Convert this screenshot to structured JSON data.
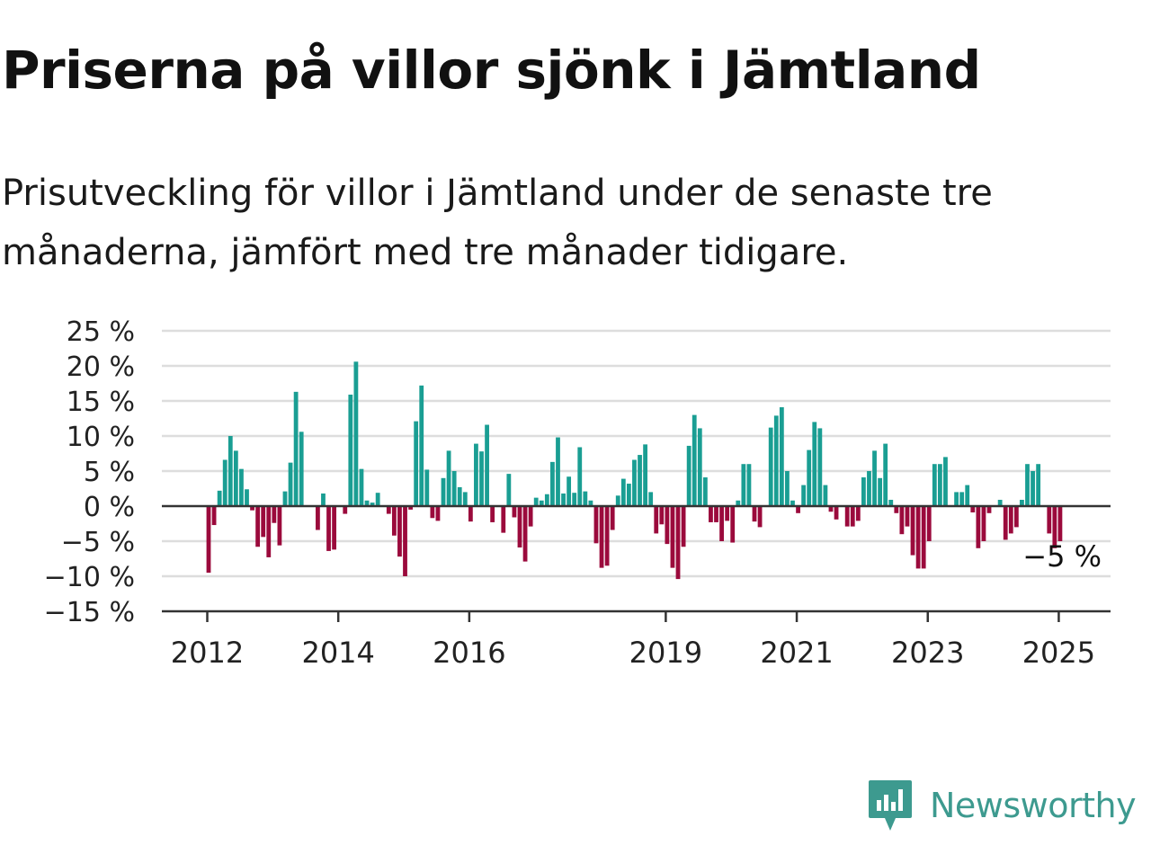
{
  "title": "Priserna på villor sjönk i Jämtland",
  "subtitle": "Prisutveckling för villor i Jämtland under de senaste tre månaderna, jämfört med tre månader tidigare.",
  "brand": {
    "name": "Newsworthy",
    "color": "#3d9a8f"
  },
  "colors": {
    "positive": "#1a9e93",
    "negative": "#9b0a3c",
    "grid": "#dddddd",
    "axis": "#333333"
  },
  "chart_data": {
    "type": "bar",
    "x_start": "2012-01",
    "y_ticks": [
      25,
      20,
      15,
      10,
      5,
      0,
      -5,
      -10,
      -15
    ],
    "y_tick_labels": [
      "25 %",
      "20 %",
      "15 %",
      "10 %",
      "5 %",
      "0 %",
      "−5 %",
      "−10 %",
      "−15 %"
    ],
    "ylim": [
      -15,
      25
    ],
    "x_ticks": [
      2012,
      2014,
      2016,
      2019,
      2021,
      2023,
      2025
    ],
    "x_tick_labels": [
      "2012",
      "2014",
      "2016",
      "2019",
      "2021",
      "2023",
      "2025"
    ],
    "last_value_label": "−5 %",
    "grid": true,
    "series": [
      {
        "values": [
          -9.5,
          -2.7,
          2.2,
          6.6,
          10,
          7.9,
          5.3,
          2.4,
          -0.6,
          -5.8,
          -4.4,
          -7.3,
          -2.4,
          -5.6,
          2.1,
          6.2,
          16.3,
          10.6,
          0,
          0,
          -3.4,
          1.8,
          -6.4,
          -6.2,
          0,
          -1.1,
          15.9,
          20.6,
          5.3,
          0.8,
          0.5,
          1.9,
          0,
          -1.1,
          -4.2,
          -7.2,
          -10,
          -0.5,
          12.1,
          17.2,
          5.2,
          -1.7,
          -2.1,
          4,
          7.9,
          5.0,
          2.7,
          2.0,
          -2.2,
          8.9,
          7.8,
          11.6,
          -2.3,
          0,
          -3.8,
          4.6,
          -1.6,
          -5.9,
          -7.9,
          -2.9,
          1.2,
          0.8,
          1.7,
          6.3,
          9.8,
          1.8,
          4.2,
          1.9,
          8.4,
          2.1,
          0.8,
          -5.3,
          -8.8,
          -8.5,
          -3.4,
          1.5,
          3.9,
          3.2,
          6.6,
          7.3,
          8.8,
          2.0,
          -3.9,
          -2.6,
          -5.4,
          -8.8,
          -10.4,
          -5.8,
          8.6,
          13.0,
          11.1,
          4.1,
          -2.3,
          -2.3,
          -5.0,
          -2.1,
          -5.2,
          0.8,
          6.0,
          6.0,
          -2.2,
          -3.0,
          0,
          11.2,
          12.9,
          14.1,
          5.0,
          0.8,
          -1.0,
          3.0,
          8.0,
          12.0,
          11.1,
          3.0,
          -0.8,
          -1.9,
          0,
          -2.9,
          -2.9,
          -2.1,
          4.1,
          5.0,
          7.9,
          4.0,
          8.9,
          0.9,
          -1.0,
          -4.0,
          -2.9,
          -7.0,
          -8.9,
          -8.9,
          -5.0,
          6.0,
          6.0,
          7.0,
          0,
          2.0,
          2.0,
          3.0,
          -0.9,
          -6.0,
          -5.0,
          -1.0,
          0,
          0.9,
          -4.8,
          -3.9,
          -3.0,
          0.9,
          6.0,
          5.0,
          6.0,
          0,
          -3.9,
          -6.0,
          -5.0
        ]
      }
    ]
  }
}
